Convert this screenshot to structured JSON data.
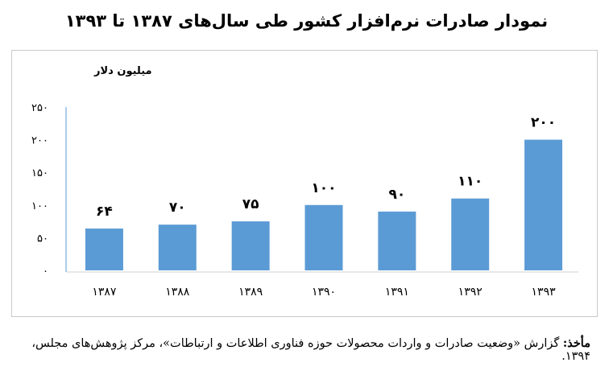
{
  "title": "نمودار صادرات نرم‌افزار کشور طی سال‌های ۱۳۸۷ تا ۱۳۹۳",
  "source": {
    "label": "مأخذ:",
    "text": "گزارش «وضعیت صادرات و واردات محصولات حوزه فناوری اطلاعات و ارتباطات»، مرکز پژوهش‌های مجلس، ۱۳۹۴."
  },
  "chart_data": {
    "type": "bar",
    "title": "نمودار صادرات نرم‌افزار کشور طی سال‌های ۱۳۸۷ تا ۱۳۹۳",
    "ylabel": "میلیون دلار",
    "xlabel": "",
    "categories": [
      "۱۳۸۷",
      "۱۳۸۸",
      "۱۳۸۹",
      "۱۳۹۰",
      "۱۳۹۱",
      "۱۳۹۲",
      "۱۳۹۳"
    ],
    "values": [
      64,
      70,
      75,
      100,
      90,
      110,
      200
    ],
    "value_labels": [
      "۶۴",
      "۷۰",
      "۷۵",
      "۱۰۰",
      "۹۰",
      "۱۱۰",
      "۲۰۰"
    ],
    "ylim": [
      0,
      250
    ],
    "yticks": [
      0,
      50,
      100,
      150,
      200,
      250
    ],
    "ytick_labels": [
      "۰",
      "۵۰",
      "۱۰۰",
      "۱۵۰",
      "۲۰۰",
      "۲۵۰"
    ],
    "grid": false,
    "legend": "none",
    "bar_color": "#5b9bd5"
  }
}
